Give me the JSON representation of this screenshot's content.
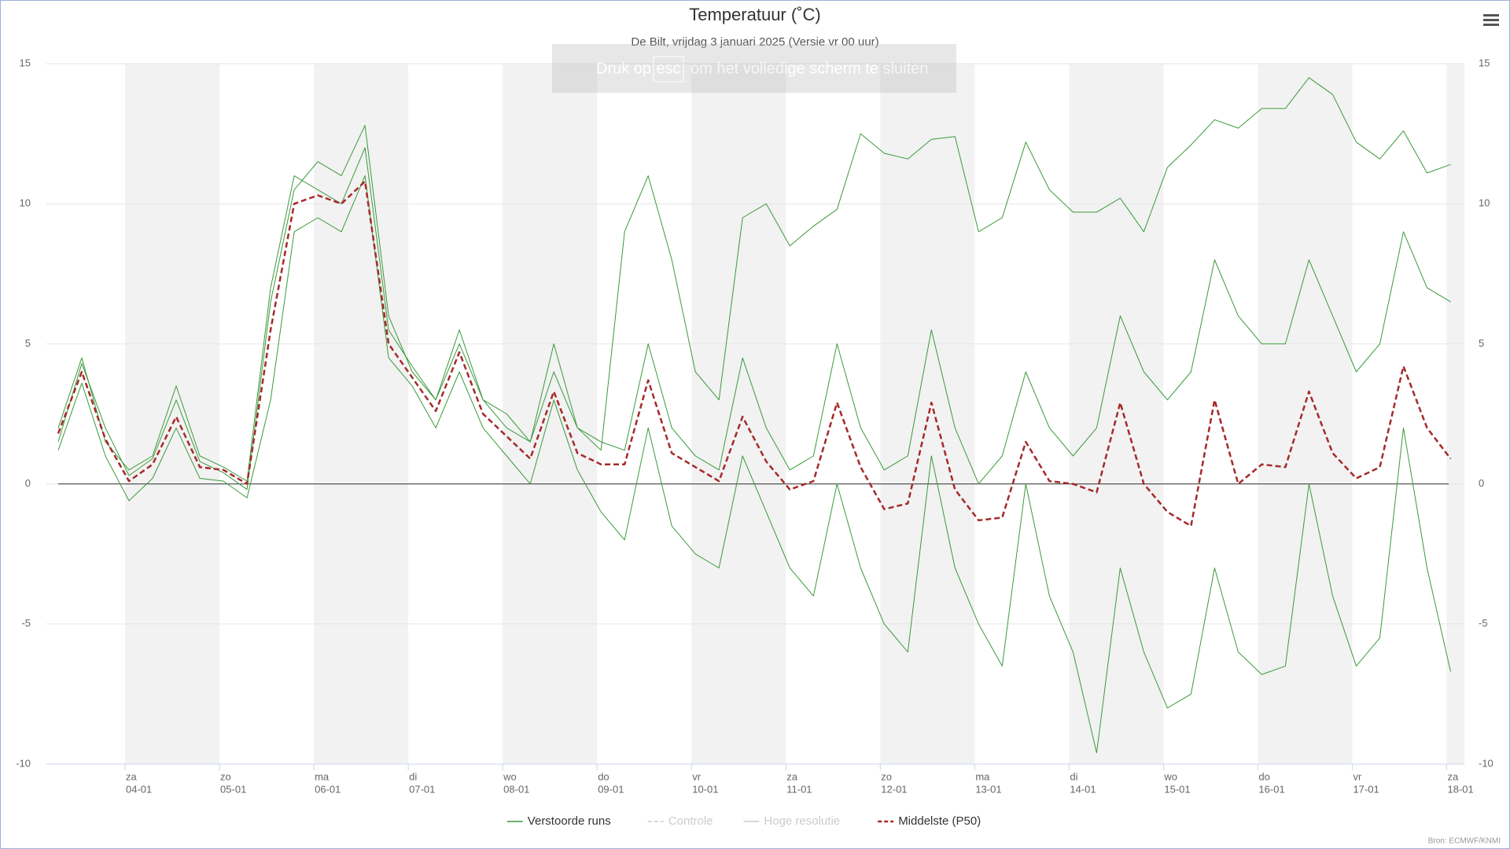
{
  "chart_data": {
    "type": "line",
    "title": "Temperatuur (˚C)",
    "subtitle": "De Bilt, vrijdag 3 januari 2025 (Versie vr 00 uur)",
    "credits": "Bron: ECMWF/KNMI",
    "overlay": {
      "before": "Druk op",
      "key": "esc",
      "after": "om het volledige scherm te sluiten"
    },
    "x": [
      "2025-01-03T07:00",
      "2025-01-03T13:00",
      "2025-01-03T19:00",
      "2025-01-04T01:00",
      "2025-01-04T07:00",
      "2025-01-04T13:00",
      "2025-01-04T19:00",
      "2025-01-05T01:00",
      "2025-01-05T07:00",
      "2025-01-05T13:00",
      "2025-01-05T19:00",
      "2025-01-06T01:00",
      "2025-01-06T07:00",
      "2025-01-06T13:00",
      "2025-01-06T19:00",
      "2025-01-07T01:00",
      "2025-01-07T07:00",
      "2025-01-07T13:00",
      "2025-01-07T19:00",
      "2025-01-08T01:00",
      "2025-01-08T07:00",
      "2025-01-08T13:00",
      "2025-01-08T19:00",
      "2025-01-09T01:00",
      "2025-01-09T07:00",
      "2025-01-09T13:00",
      "2025-01-09T19:00",
      "2025-01-10T01:00",
      "2025-01-10T07:00",
      "2025-01-10T13:00",
      "2025-01-10T19:00",
      "2025-01-11T01:00",
      "2025-01-11T07:00",
      "2025-01-11T13:00",
      "2025-01-11T19:00",
      "2025-01-12T01:00",
      "2025-01-12T07:00",
      "2025-01-12T13:00",
      "2025-01-12T19:00",
      "2025-01-13T01:00",
      "2025-01-13T07:00",
      "2025-01-13T13:00",
      "2025-01-13T19:00",
      "2025-01-14T01:00",
      "2025-01-14T07:00",
      "2025-01-14T13:00",
      "2025-01-14T19:00",
      "2025-01-15T01:00",
      "2025-01-15T07:00",
      "2025-01-15T13:00",
      "2025-01-15T19:00",
      "2025-01-16T01:00",
      "2025-01-16T07:00",
      "2025-01-16T13:00",
      "2025-01-16T19:00",
      "2025-01-17T01:00",
      "2025-01-17T07:00",
      "2025-01-17T13:00",
      "2025-01-17T19:00",
      "2025-01-18T01:00"
    ],
    "xlim": [
      "2025-01-03T04:00",
      "2025-01-18T04:30"
    ],
    "xticks": [
      {
        "value": "2025-01-04T00:00",
        "day": "za",
        "label": "04-01"
      },
      {
        "value": "2025-01-05T00:00",
        "day": "zo",
        "label": "05-01"
      },
      {
        "value": "2025-01-06T00:00",
        "day": "ma",
        "label": "06-01"
      },
      {
        "value": "2025-01-07T00:00",
        "day": "di",
        "label": "07-01"
      },
      {
        "value": "2025-01-08T00:00",
        "day": "wo",
        "label": "08-01"
      },
      {
        "value": "2025-01-09T00:00",
        "day": "do",
        "label": "09-01"
      },
      {
        "value": "2025-01-10T00:00",
        "day": "vr",
        "label": "10-01"
      },
      {
        "value": "2025-01-11T00:00",
        "day": "za",
        "label": "11-01"
      },
      {
        "value": "2025-01-12T00:00",
        "day": "zo",
        "label": "12-01"
      },
      {
        "value": "2025-01-13T00:00",
        "day": "ma",
        "label": "13-01"
      },
      {
        "value": "2025-01-14T00:00",
        "day": "di",
        "label": "14-01"
      },
      {
        "value": "2025-01-15T00:00",
        "day": "wo",
        "label": "15-01"
      },
      {
        "value": "2025-01-16T00:00",
        "day": "do",
        "label": "16-01"
      },
      {
        "value": "2025-01-17T00:00",
        "day": "vr",
        "label": "17-01"
      },
      {
        "value": "2025-01-18T00:00",
        "day": "za",
        "label": "18-01"
      }
    ],
    "ylim": [
      -10,
      15
    ],
    "yticks": [
      -10,
      -5,
      0,
      5,
      10,
      15
    ],
    "grid": true,
    "zero_line": true,
    "alternate_bands": true,
    "legend": "bottom",
    "series": [
      {
        "name": "Verstoorde runs",
        "color": "#3a9a3a",
        "visible": true,
        "values": [
          [
            1.5,
            4.3,
            2,
            0.3,
            0.9,
            3.0,
            0.8,
            0.4,
            -0.2,
            6.5,
            10.5,
            11.5,
            11,
            12.8,
            6,
            4,
            3,
            5,
            3,
            2,
            1.5,
            4,
            2,
            1.2,
            9,
            11,
            8,
            4,
            3,
            9.5,
            10,
            8.5,
            9.2,
            9.8,
            12.5,
            11.8,
            11.6,
            12.3,
            12.4,
            9,
            9.5,
            12.2,
            10.5,
            9.7,
            9.7,
            10.2,
            9,
            11.3,
            12.1,
            13,
            12.7,
            13.4,
            13.4,
            14.5,
            13.9,
            12.2,
            11.6,
            12.6,
            11.1,
            11.4
          ],
          [
            1.2,
            3.6,
            1,
            -0.6,
            0.2,
            2,
            0.2,
            0.1,
            -0.5,
            3,
            9,
            9.5,
            9,
            11,
            4.5,
            3.5,
            2,
            4,
            2,
            1,
            0,
            3,
            0.5,
            -1,
            -2,
            2,
            -1.5,
            -2.5,
            -3,
            1,
            -1,
            -3,
            -4,
            0,
            -3,
            -5,
            -6,
            1,
            -3,
            -5,
            -6.5,
            0,
            -4,
            -6,
            -9.6,
            -3,
            -6,
            -8,
            -7.5,
            -3,
            -6,
            -6.8,
            -6.5,
            0,
            -4,
            -6.5,
            -5.5,
            2,
            -3,
            -6.7
          ],
          [
            2,
            4.5,
            1.5,
            0.5,
            1,
            3.5,
            1,
            0.6,
            0.1,
            7,
            11,
            10.5,
            10,
            12,
            5.5,
            4.2,
            3,
            5.5,
            3,
            2.5,
            1.5,
            5,
            2,
            1.5,
            1.2,
            5,
            2,
            1,
            0.5,
            4.5,
            2,
            0.5,
            1,
            5,
            2,
            0.5,
            1,
            5.5,
            2,
            0,
            1,
            4,
            2,
            1,
            2,
            6,
            4,
            3,
            4,
            8,
            6,
            5,
            5,
            8,
            6,
            4,
            5,
            9,
            7,
            6.5
          ]
        ]
      },
      {
        "name": "Controle",
        "color": "#cccccc",
        "dashed": true,
        "visible": false
      },
      {
        "name": "Hoge resolutie",
        "color": "#cccccc",
        "visible": false
      },
      {
        "name": "Middelste (P50)",
        "color": "#a52a2a",
        "dashed": true,
        "visible": true,
        "values": [
          1.8,
          4.0,
          1.6,
          0.1,
          0.7,
          2.4,
          0.6,
          0.5,
          0.0,
          5.5,
          10.0,
          10.3,
          10.0,
          10.8,
          5.0,
          3.8,
          2.6,
          4.7,
          2.5,
          1.7,
          0.9,
          3.3,
          1.1,
          0.7,
          0.7,
          3.7,
          1.1,
          0.6,
          0.1,
          2.4,
          0.8,
          -0.2,
          0.1,
          2.9,
          0.6,
          -0.9,
          -0.7,
          2.9,
          -0.2,
          -1.3,
          -1.2,
          1.5,
          0.1,
          0.0,
          -0.3,
          2.9,
          0.0,
          -1.0,
          -1.5,
          3.0,
          0.0,
          0.7,
          0.6,
          3.3,
          1.1,
          0.2,
          0.6,
          4.2,
          2.0,
          0.9
        ]
      }
    ]
  }
}
